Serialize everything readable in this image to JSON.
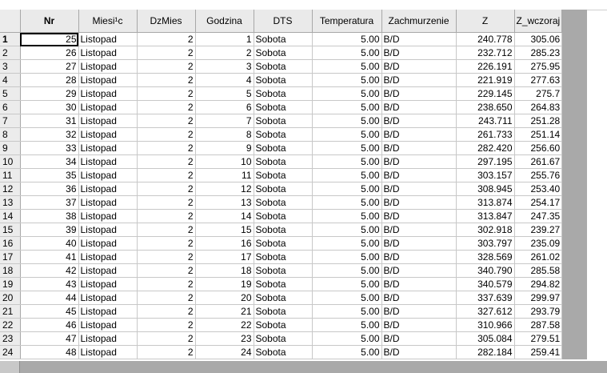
{
  "grid": {
    "columns": [
      "Nr",
      "Miesi¹c",
      "DzMies",
      "Godzina",
      "DTS",
      "Temperatura",
      "Zachmurzenie",
      "Z",
      "Z_wczoraj"
    ],
    "rows": [
      {
        "row": "1",
        "cells": [
          "25",
          "Listopad",
          "2",
          "1",
          "Sobota",
          "5.00",
          "B/D",
          "240.778",
          "305.06"
        ]
      },
      {
        "row": "2",
        "cells": [
          "26",
          "Listopad",
          "2",
          "2",
          "Sobota",
          "5.00",
          "B/D",
          "232.712",
          "285.23"
        ]
      },
      {
        "row": "3",
        "cells": [
          "27",
          "Listopad",
          "2",
          "3",
          "Sobota",
          "5.00",
          "B/D",
          "226.191",
          "275.95"
        ]
      },
      {
        "row": "4",
        "cells": [
          "28",
          "Listopad",
          "2",
          "4",
          "Sobota",
          "5.00",
          "B/D",
          "221.919",
          "277.63"
        ]
      },
      {
        "row": "5",
        "cells": [
          "29",
          "Listopad",
          "2",
          "5",
          "Sobota",
          "5.00",
          "B/D",
          "229.145",
          "275.7"
        ]
      },
      {
        "row": "6",
        "cells": [
          "30",
          "Listopad",
          "2",
          "6",
          "Sobota",
          "5.00",
          "B/D",
          "238.650",
          "264.83"
        ]
      },
      {
        "row": "7",
        "cells": [
          "31",
          "Listopad",
          "2",
          "7",
          "Sobota",
          "5.00",
          "B/D",
          "243.711",
          "251.28"
        ]
      },
      {
        "row": "8",
        "cells": [
          "32",
          "Listopad",
          "2",
          "8",
          "Sobota",
          "5.00",
          "B/D",
          "261.733",
          "251.14"
        ]
      },
      {
        "row": "9",
        "cells": [
          "33",
          "Listopad",
          "2",
          "9",
          "Sobota",
          "5.00",
          "B/D",
          "282.420",
          "256.60"
        ]
      },
      {
        "row": "10",
        "cells": [
          "34",
          "Listopad",
          "2",
          "10",
          "Sobota",
          "5.00",
          "B/D",
          "297.195",
          "261.67"
        ]
      },
      {
        "row": "11",
        "cells": [
          "35",
          "Listopad",
          "2",
          "11",
          "Sobota",
          "5.00",
          "B/D",
          "303.157",
          "255.76"
        ]
      },
      {
        "row": "12",
        "cells": [
          "36",
          "Listopad",
          "2",
          "12",
          "Sobota",
          "5.00",
          "B/D",
          "308.945",
          "253.40"
        ]
      },
      {
        "row": "13",
        "cells": [
          "37",
          "Listopad",
          "2",
          "13",
          "Sobota",
          "5.00",
          "B/D",
          "313.874",
          "254.17"
        ]
      },
      {
        "row": "14",
        "cells": [
          "38",
          "Listopad",
          "2",
          "14",
          "Sobota",
          "5.00",
          "B/D",
          "313.847",
          "247.35"
        ]
      },
      {
        "row": "15",
        "cells": [
          "39",
          "Listopad",
          "2",
          "15",
          "Sobota",
          "5.00",
          "B/D",
          "302.918",
          "239.27"
        ]
      },
      {
        "row": "16",
        "cells": [
          "40",
          "Listopad",
          "2",
          "16",
          "Sobota",
          "5.00",
          "B/D",
          "303.797",
          "235.09"
        ]
      },
      {
        "row": "17",
        "cells": [
          "41",
          "Listopad",
          "2",
          "17",
          "Sobota",
          "5.00",
          "B/D",
          "328.569",
          "261.02"
        ]
      },
      {
        "row": "18",
        "cells": [
          "42",
          "Listopad",
          "2",
          "18",
          "Sobota",
          "5.00",
          "B/D",
          "340.790",
          "285.58"
        ]
      },
      {
        "row": "19",
        "cells": [
          "43",
          "Listopad",
          "2",
          "19",
          "Sobota",
          "5.00",
          "B/D",
          "340.579",
          "294.82"
        ]
      },
      {
        "row": "20",
        "cells": [
          "44",
          "Listopad",
          "2",
          "20",
          "Sobota",
          "5.00",
          "B/D",
          "337.639",
          "299.97"
        ]
      },
      {
        "row": "21",
        "cells": [
          "45",
          "Listopad",
          "2",
          "21",
          "Sobota",
          "5.00",
          "B/D",
          "327.612",
          "293.79"
        ]
      },
      {
        "row": "22",
        "cells": [
          "46",
          "Listopad",
          "2",
          "22",
          "Sobota",
          "5.00",
          "B/D",
          "310.966",
          "287.58"
        ]
      },
      {
        "row": "23",
        "cells": [
          "47",
          "Listopad",
          "2",
          "23",
          "Sobota",
          "5.00",
          "B/D",
          "305.084",
          "279.51"
        ]
      },
      {
        "row": "24",
        "cells": [
          "48",
          "Listopad",
          "2",
          "24",
          "Sobota",
          "5.00",
          "B/D",
          "282.184",
          "259.41"
        ]
      }
    ]
  },
  "colors": {
    "header_bg": "#eaeaea",
    "gridline": "#c8c8c8",
    "empty_area": "#a9a9a9"
  }
}
